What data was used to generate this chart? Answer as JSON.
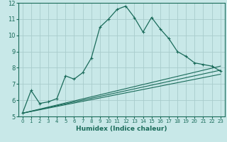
{
  "title": "",
  "xlabel": "Humidex (Indice chaleur)",
  "xlim": [
    -0.5,
    23.5
  ],
  "ylim": [
    5,
    12
  ],
  "yticks": [
    5,
    6,
    7,
    8,
    9,
    10,
    11,
    12
  ],
  "xticks": [
    0,
    1,
    2,
    3,
    4,
    5,
    6,
    7,
    8,
    9,
    10,
    11,
    12,
    13,
    14,
    15,
    16,
    17,
    18,
    19,
    20,
    21,
    22,
    23
  ],
  "background_color": "#c8e8e8",
  "grid_color": "#a8cccc",
  "line_color": "#1a6b5a",
  "curves": [
    {
      "x": [
        0,
        1,
        2,
        3,
        4,
        5,
        6,
        7,
        8,
        9,
        10,
        11,
        12,
        13,
        14,
        15,
        16,
        17,
        18,
        19,
        20,
        21,
        22,
        23
      ],
      "y": [
        5.2,
        6.6,
        5.8,
        5.9,
        6.1,
        7.5,
        7.3,
        7.7,
        8.6,
        10.5,
        11.0,
        11.6,
        11.8,
        11.1,
        10.2,
        11.1,
        10.4,
        9.8,
        9.0,
        8.7,
        8.3,
        8.2,
        8.1,
        7.8
      ],
      "marker": true
    },
    {
      "x": [
        0,
        23
      ],
      "y": [
        5.2,
        8.1
      ],
      "marker": false
    },
    {
      "x": [
        0,
        23
      ],
      "y": [
        5.2,
        7.85
      ],
      "marker": false
    },
    {
      "x": [
        0,
        23
      ],
      "y": [
        5.2,
        7.6
      ],
      "marker": false
    }
  ],
  "xlabel_fontsize": 6.5,
  "tick_fontsize_x": 5.0,
  "tick_fontsize_y": 6.0
}
